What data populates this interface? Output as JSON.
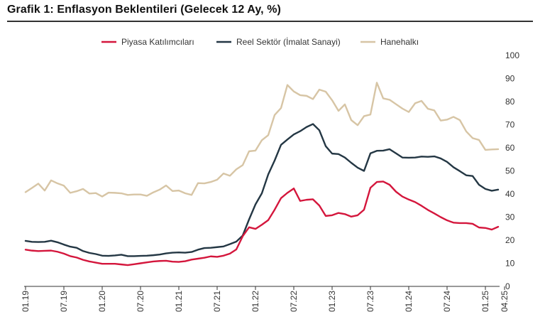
{
  "chart_data": {
    "type": "line",
    "title": "Grafik 1: Enflasyon Beklentileri (Gelecek 12 Ay, %)",
    "xlabel": "",
    "ylabel": "",
    "ylim": [
      0,
      100
    ],
    "yticks": [
      0,
      10,
      20,
      30,
      40,
      50,
      60,
      70,
      80,
      90,
      100
    ],
    "xticks": [
      "01.19",
      "07.19",
      "01.20",
      "07.20",
      "01.21",
      "07.21",
      "01.22",
      "07.22",
      "01.23",
      "07.23",
      "01.24",
      "07.24",
      "01.25",
      "04.25"
    ],
    "x_start": "01.19",
    "x_end": "04.25",
    "grid": false,
    "legend_position": "top",
    "series": [
      {
        "name": "Piyasa Katılımcıları",
        "color": "#d4163c",
        "values": [
          15.9,
          15.5,
          15.3,
          15.4,
          15.5,
          15.0,
          14.2,
          13.1,
          12.5,
          11.5,
          10.8,
          10.3,
          9.8,
          9.8,
          9.8,
          9.5,
          9.2,
          9.6,
          10.0,
          10.4,
          10.8,
          11.0,
          11.1,
          10.7,
          10.6,
          10.9,
          11.6,
          12.0,
          12.4,
          13.0,
          12.8,
          13.3,
          14.2,
          16.0,
          21.7,
          25.6,
          24.9,
          26.7,
          28.7,
          33.2,
          38.2,
          40.5,
          42.4,
          37.0,
          37.5,
          37.7,
          35.0,
          30.5,
          30.8,
          31.8,
          31.3,
          30.2,
          30.8,
          33.2,
          42.7,
          45.2,
          45.4,
          44.0,
          41.0,
          38.9,
          37.6,
          36.5,
          34.9,
          33.1,
          31.6,
          30.0,
          28.6,
          27.6,
          27.4,
          27.4,
          27.1,
          25.5,
          25.3,
          24.6,
          25.8
        ]
      },
      {
        "name": "Reel Sektör (İmalat Sanayi)",
        "color": "#243744",
        "values": [
          19.7,
          19.3,
          19.2,
          19.3,
          19.8,
          19.1,
          18.1,
          17.2,
          16.7,
          15.3,
          14.5,
          14.0,
          13.3,
          13.2,
          13.4,
          13.7,
          13.1,
          13.1,
          13.2,
          13.3,
          13.5,
          13.8,
          14.3,
          14.6,
          14.7,
          14.6,
          14.9,
          15.9,
          16.6,
          16.7,
          17.0,
          17.3,
          18.3,
          19.4,
          22.0,
          29.0,
          35.5,
          40.3,
          48.5,
          54.5,
          61.3,
          63.6,
          65.8,
          67.2,
          69.0,
          70.3,
          67.6,
          60.7,
          57.5,
          57.3,
          55.8,
          53.5,
          51.4,
          50.0,
          57.6,
          58.7,
          58.8,
          59.4,
          57.6,
          55.8,
          55.7,
          55.8,
          56.2,
          56.1,
          56.3,
          55.4,
          53.9,
          51.6,
          49.9,
          48.1,
          47.8,
          44.0,
          42.2,
          41.4,
          41.9
        ]
      },
      {
        "name": "Hanehalkı",
        "color": "#d7c5a5",
        "values": [
          40.8,
          42.6,
          44.5,
          41.5,
          45.9,
          44.6,
          43.6,
          40.5,
          41.2,
          42.2,
          40.2,
          40.4,
          38.9,
          40.6,
          40.5,
          40.3,
          39.6,
          39.8,
          39.8,
          39.2,
          40.7,
          41.9,
          43.7,
          41.3,
          41.5,
          40.3,
          39.6,
          44.7,
          44.6,
          45.2,
          46.2,
          48.9,
          47.9,
          50.7,
          52.5,
          58.5,
          58.8,
          63.3,
          65.5,
          74.2,
          77.2,
          87.2,
          84.4,
          82.8,
          82.5,
          81.1,
          85.2,
          84.3,
          80.6,
          76.0,
          78.8,
          72.0,
          69.8,
          73.7,
          74.4,
          88.2,
          81.4,
          80.8,
          78.9,
          77.0,
          75.5,
          79.3,
          80.3,
          76.9,
          76.2,
          71.8,
          72.2,
          73.4,
          72.0,
          67.1,
          64.2,
          63.4,
          59.1,
          59.3,
          59.4
        ]
      }
    ]
  }
}
